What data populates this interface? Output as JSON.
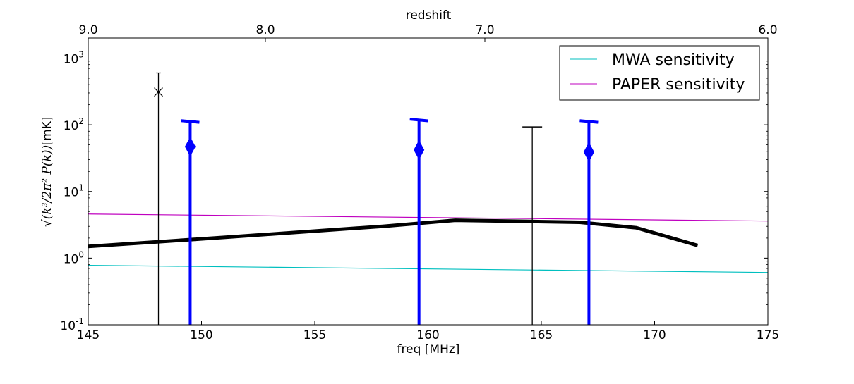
{
  "chart_data": {
    "type": "line",
    "xlabel": "freq [MHz]",
    "x2label": "redshift",
    "ylabel_expr": "√(k³/2π² P(k))",
    "ylabel_unit": "[mK]",
    "xlim": [
      145,
      175
    ],
    "ylim": [
      0.1,
      2000
    ],
    "yscale": "log",
    "x_ticks": [
      145,
      150,
      155,
      160,
      165,
      170,
      175
    ],
    "x_tick_labels": [
      "145",
      "150",
      "155",
      "160",
      "165",
      "170",
      "175"
    ],
    "x2_ticks": [
      {
        "label": "9.0",
        "freq": 142.04
      },
      {
        "label": "8.0",
        "freq": 157.82
      },
      {
        "label": "7.0",
        "freq": 177.55
      },
      {
        "label": "6.0",
        "freq": 202.91
      }
    ],
    "y_ticks": [
      {
        "value": 0.1,
        "base": "10",
        "exp": "-1"
      },
      {
        "value": 1,
        "base": "10",
        "exp": "0"
      },
      {
        "value": 10,
        "base": "10",
        "exp": "1"
      },
      {
        "value": 100,
        "base": "10",
        "exp": "2"
      },
      {
        "value": 1000,
        "base": "10",
        "exp": "3"
      }
    ],
    "legend_position": "top-right",
    "series": [
      {
        "name": "MWA sensitivity",
        "color": "#00bfbf",
        "style": "thin-line",
        "x": [
          145,
          175
        ],
        "y": [
          0.78,
          0.61
        ]
      },
      {
        "name": "PAPER sensitivity",
        "color": "#bf00bf",
        "style": "thin-line",
        "x": [
          145,
          175
        ],
        "y": [
          4.6,
          3.6
        ]
      },
      {
        "color": "#000000",
        "style": "thick-line",
        "x": [
          145,
          148,
          151,
          158,
          161.2,
          164.5,
          166.7,
          169.2,
          171.9
        ],
        "y": [
          1.5,
          1.75,
          2.05,
          3.0,
          3.7,
          3.55,
          3.45,
          2.85,
          1.55
        ]
      }
    ],
    "upper_limits": [
      {
        "x": 149.5,
        "marker_y": 47,
        "top": 112,
        "color": "#0000ff",
        "style": "thick",
        "marker": "diamond"
      },
      {
        "x": 159.6,
        "marker_y": 42,
        "top": 118,
        "color": "#0000ff",
        "style": "thick",
        "marker": "diamond"
      },
      {
        "x": 167.1,
        "marker_y": 39,
        "top": 112,
        "color": "#0000ff",
        "style": "thick",
        "marker": "diamond"
      },
      {
        "x": 148.1,
        "marker_y": 310,
        "top": 600,
        "color": "#000000",
        "style": "thin",
        "marker": "x"
      },
      {
        "x": 164.6,
        "marker_y": null,
        "top": 93,
        "color": "#000000",
        "style": "thin",
        "marker": "none"
      }
    ]
  }
}
